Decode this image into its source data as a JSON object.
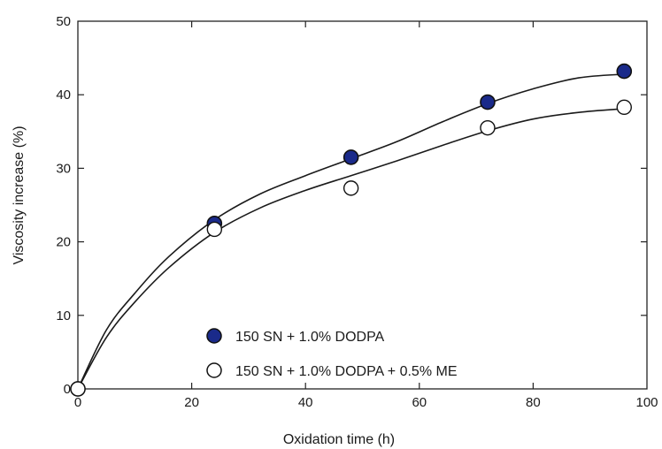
{
  "chart_data": {
    "type": "scatter",
    "title": "",
    "xlabel": "Oxidation time (h)",
    "ylabel": "Viscosity increase (%)",
    "xlim": [
      0,
      100
    ],
    "ylim": [
      0,
      50
    ],
    "x_ticks": [
      0,
      20,
      40,
      60,
      80,
      100
    ],
    "y_ticks": [
      0,
      10,
      20,
      30,
      40,
      50
    ],
    "grid": false,
    "legend_position": "bottom-center",
    "series": [
      {
        "name": "150 SN + 1.0% DODPA",
        "marker": "filled-circle",
        "color": "#1a2a8a",
        "x": [
          0,
          24,
          48,
          72,
          96
        ],
        "y": [
          0,
          22.5,
          31.5,
          39,
          43.2
        ],
        "fit_curve": [
          [
            0,
            0
          ],
          [
            5,
            8
          ],
          [
            10,
            13
          ],
          [
            16,
            18
          ],
          [
            24,
            23
          ],
          [
            32,
            26.5
          ],
          [
            40,
            29
          ],
          [
            48,
            31.3
          ],
          [
            56,
            33.6
          ],
          [
            64,
            36.3
          ],
          [
            72,
            38.8
          ],
          [
            80,
            40.8
          ],
          [
            88,
            42.3
          ],
          [
            96,
            42.8
          ]
        ]
      },
      {
        "name": "150 SN + 1.0% DODPA + 0.5% ME",
        "marker": "open-circle",
        "color": "#ffffff",
        "x": [
          0,
          24,
          48,
          72,
          96
        ],
        "y": [
          0,
          21.7,
          27.3,
          35.5,
          38.3
        ],
        "fit_curve": [
          [
            0,
            0
          ],
          [
            5,
            7
          ],
          [
            10,
            11.8
          ],
          [
            16,
            16.5
          ],
          [
            24,
            21.3
          ],
          [
            32,
            24.6
          ],
          [
            40,
            27
          ],
          [
            48,
            29
          ],
          [
            56,
            31
          ],
          [
            64,
            33.1
          ],
          [
            72,
            35.1
          ],
          [
            80,
            36.7
          ],
          [
            88,
            37.6
          ],
          [
            96,
            38.1
          ]
        ]
      }
    ]
  }
}
